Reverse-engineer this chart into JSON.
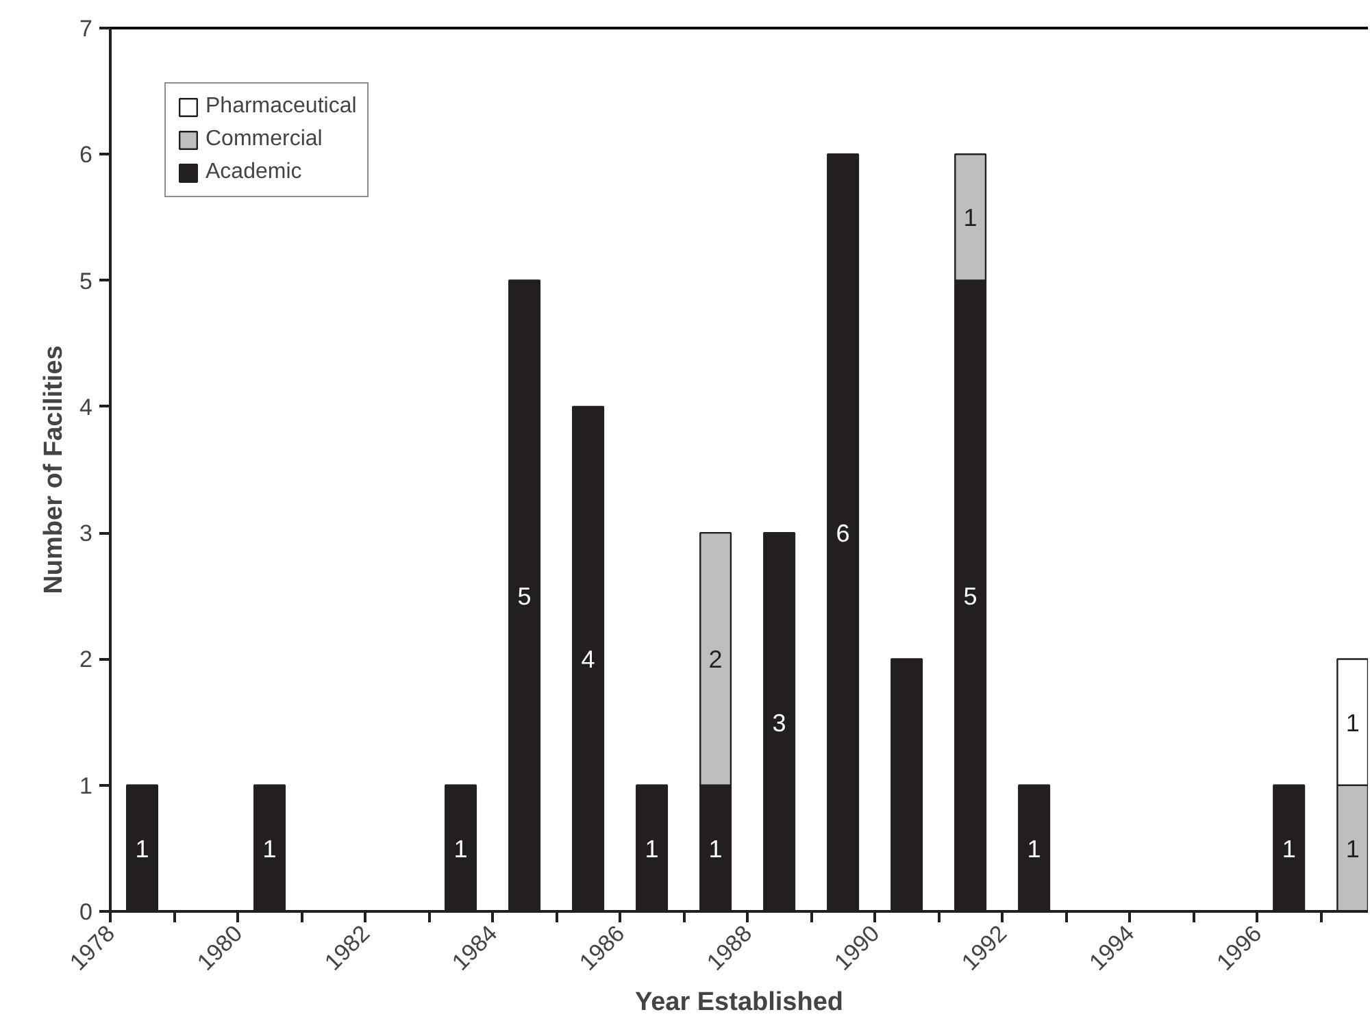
{
  "chart_data": {
    "type": "bar",
    "stacked": true,
    "xlabel": "Year Established",
    "ylabel": "Number of Facilities",
    "x": [
      1978.5,
      1979.5,
      1980.5,
      1981.5,
      1982.5,
      1983.5,
      1984.5,
      1985.5,
      1986.5,
      1987.5,
      1988.5,
      1989.5,
      1990.5,
      1991.5,
      1992.5,
      1993.5,
      1994.5,
      1995.5,
      1996.5,
      1997.5
    ],
    "series": [
      {
        "name": "Academic",
        "color": "#231f20",
        "values": [
          1,
          0,
          1,
          0,
          0,
          1,
          5,
          4,
          1,
          1,
          3,
          6,
          2,
          5,
          1,
          0,
          0,
          0,
          1,
          0
        ],
        "value_labels": [
          "1",
          null,
          "1",
          null,
          null,
          "1",
          "5",
          "4",
          "1",
          "1",
          "3",
          "6",
          null,
          "5",
          "1",
          null,
          null,
          null,
          "1",
          null
        ]
      },
      {
        "name": "Commercial",
        "color": "#bcbec0",
        "values": [
          0,
          0,
          0,
          0,
          0,
          0,
          0,
          0,
          0,
          2,
          0,
          0,
          0,
          1,
          0,
          0,
          0,
          0,
          0,
          1
        ],
        "value_labels": [
          null,
          null,
          null,
          null,
          null,
          null,
          null,
          null,
          null,
          "2",
          null,
          null,
          null,
          "1",
          null,
          null,
          null,
          null,
          null,
          "1"
        ]
      },
      {
        "name": "Pharmaceutical",
        "color": "#ffffff",
        "values": [
          0,
          0,
          0,
          0,
          0,
          0,
          0,
          0,
          0,
          0,
          0,
          0,
          0,
          0,
          0,
          0,
          0,
          0,
          0,
          1
        ],
        "value_labels": [
          null,
          null,
          null,
          null,
          null,
          null,
          null,
          null,
          null,
          null,
          null,
          null,
          null,
          null,
          null,
          null,
          null,
          null,
          null,
          "1"
        ]
      }
    ],
    "xlim": [
      1978,
      1997.74
    ],
    "xticks": [
      1978,
      {
        "value": 1979,
        "label": null
      },
      1980,
      {
        "value": 1981,
        "label": null
      },
      1982,
      {
        "value": 1983,
        "label": null
      },
      1984,
      {
        "value": 1985,
        "label": null
      },
      1986,
      {
        "value": 1987,
        "label": null
      },
      1988,
      {
        "value": 1989,
        "label": null
      },
      1990,
      {
        "value": 1991,
        "label": null
      },
      1992,
      {
        "value": 1993,
        "label": null
      },
      1994,
      {
        "value": 1995,
        "label": null
      },
      1996,
      {
        "value": 1997,
        "label": null
      }
    ],
    "ylim": [
      0,
      7
    ],
    "yticks": [
      0,
      1,
      2,
      3,
      4,
      5,
      6,
      7
    ],
    "grid": false,
    "legend": "top left"
  }
}
